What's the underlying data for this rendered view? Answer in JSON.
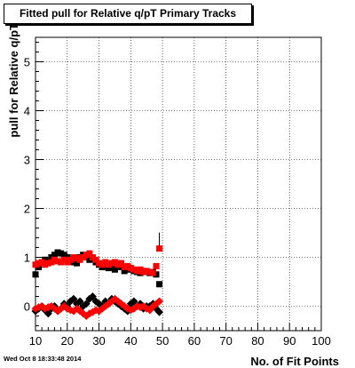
{
  "chart_data": {
    "type": "scatter",
    "title": "Fitted pull for Relative q/pT Primary Tracks",
    "xlabel": "No. of Fit Points",
    "ylabel": "pull for Relative q/pT",
    "xlim": [
      10,
      100
    ],
    "ylim": [
      -0.5,
      5.5
    ],
    "x_ticks": [
      10,
      20,
      30,
      40,
      50,
      60,
      70,
      80,
      90,
      100
    ],
    "y_ticks": [
      0,
      1,
      2,
      3,
      4,
      5
    ],
    "grid": true,
    "legend": "none",
    "series": [
      {
        "color": "#000000",
        "marker": "square",
        "x": [
          10,
          11,
          12,
          13,
          14,
          15,
          16,
          17,
          18,
          19,
          20,
          21,
          22,
          23,
          24,
          25,
          26,
          27,
          28,
          29,
          30,
          31,
          32,
          33,
          34,
          35,
          36,
          37,
          38,
          39,
          40,
          41,
          42,
          43,
          44,
          45,
          46,
          47,
          48,
          49
        ],
        "y": [
          0.65,
          0.8,
          0.9,
          0.95,
          0.92,
          1.0,
          1.05,
          1.1,
          1.08,
          1.05,
          1.0,
          0.95,
          0.9,
          0.88,
          1.0,
          1.05,
          1.0,
          0.95,
          0.98,
          0.9,
          0.85,
          0.8,
          0.82,
          0.78,
          0.8,
          0.75,
          0.85,
          0.8,
          0.72,
          0.75,
          0.78,
          0.72,
          0.7,
          0.68,
          0.72,
          0.7,
          0.68,
          0.7,
          0.65,
          0.45
        ]
      },
      {
        "color": "#ff0000",
        "marker": "square",
        "x": [
          10,
          11,
          12,
          13,
          14,
          15,
          16,
          17,
          18,
          19,
          20,
          21,
          22,
          23,
          24,
          25,
          26,
          27,
          28,
          29,
          30,
          31,
          32,
          33,
          34,
          35,
          36,
          37,
          38,
          39,
          40,
          41,
          42,
          43,
          44,
          45,
          46,
          47,
          48,
          49
        ],
        "y": [
          0.85,
          0.88,
          0.9,
          0.85,
          0.88,
          0.9,
          0.95,
          0.92,
          0.9,
          0.95,
          0.9,
          0.95,
          1.0,
          0.98,
          0.95,
          1.0,
          1.05,
          1.08,
          1.0,
          0.95,
          0.88,
          0.85,
          0.9,
          0.85,
          0.88,
          0.9,
          0.85,
          0.88,
          0.8,
          0.82,
          0.78,
          0.75,
          0.72,
          0.75,
          0.7,
          0.72,
          0.7,
          0.68,
          0.82,
          1.18
        ]
      },
      {
        "color": "#000000",
        "marker": "diamond",
        "x": [
          10,
          11,
          12,
          13,
          14,
          15,
          16,
          17,
          18,
          19,
          20,
          21,
          22,
          23,
          24,
          25,
          26,
          27,
          28,
          29,
          30,
          31,
          32,
          33,
          34,
          35,
          36,
          37,
          38,
          39,
          40,
          41,
          42,
          43,
          44,
          45,
          46,
          47,
          48,
          49
        ],
        "y": [
          -0.1,
          -0.05,
          0.0,
          -0.08,
          -0.15,
          -0.05,
          0.0,
          -0.1,
          -0.05,
          0.05,
          0.0,
          0.1,
          0.15,
          0.05,
          0.1,
          0.0,
          0.05,
          0.15,
          0.2,
          0.1,
          0.05,
          0.0,
          0.1,
          0.05,
          0.15,
          0.1,
          0.05,
          0.0,
          -0.05,
          -0.1,
          0.05,
          0.1,
          0.0,
          0.05,
          -0.05,
          0.0,
          0.0,
          0.05,
          -0.05,
          -0.12
        ]
      },
      {
        "color": "#ff0000",
        "marker": "diamond",
        "x": [
          10,
          11,
          12,
          13,
          14,
          15,
          16,
          17,
          18,
          19,
          20,
          21,
          22,
          23,
          24,
          25,
          26,
          27,
          28,
          29,
          30,
          31,
          32,
          33,
          34,
          35,
          36,
          37,
          38,
          39,
          40,
          41,
          42,
          43,
          44,
          45,
          46,
          47,
          48,
          49
        ],
        "y": [
          -0.05,
          -0.02,
          0.0,
          -0.05,
          -0.02,
          0.0,
          -0.05,
          -0.1,
          -0.05,
          0.0,
          -0.05,
          -0.08,
          -0.1,
          -0.05,
          -0.1,
          -0.15,
          -0.2,
          -0.15,
          -0.12,
          -0.08,
          -0.1,
          -0.05,
          0.0,
          0.05,
          0.1,
          0.15,
          0.1,
          0.05,
          0.0,
          -0.05,
          -0.08,
          -0.05,
          0.0,
          -0.02,
          0.0,
          -0.05,
          -0.08,
          0.0,
          0.05,
          0.1
        ]
      }
    ]
  },
  "footer": {
    "timestamp": "Wed Oct  8 18:33:48 2014"
  }
}
